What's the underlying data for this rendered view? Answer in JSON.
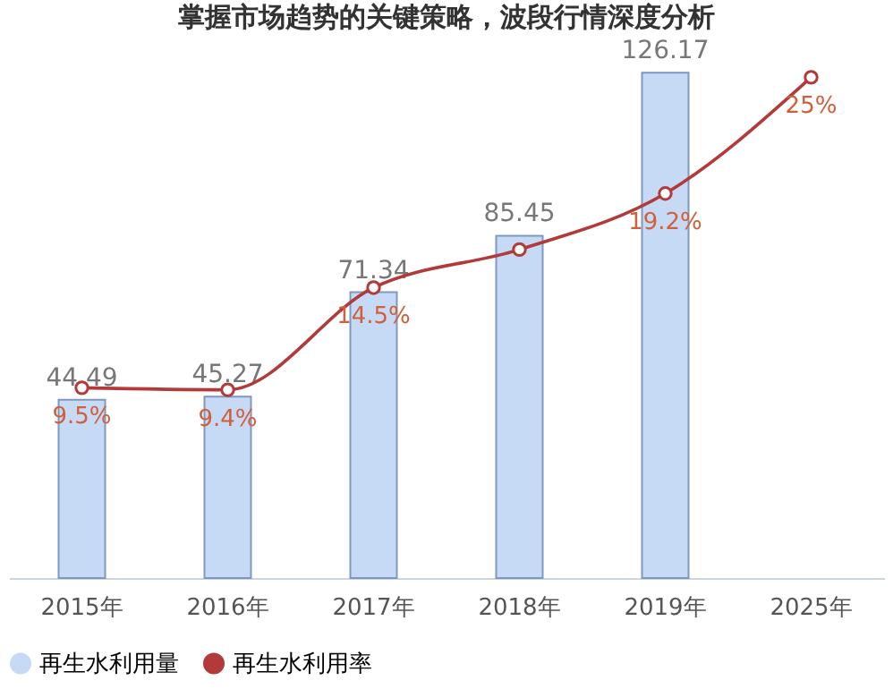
{
  "chart_data": {
    "type": "bar",
    "title": "掌握市场趋势的关键策略，波段行情深度分析",
    "categories": [
      "2015年",
      "2016年",
      "2017年",
      "2018年",
      "2019年",
      "2025年"
    ],
    "series": [
      {
        "name": "再生水利用量",
        "color": "#c6daf6",
        "values": [
          44.49,
          45.27,
          71.34,
          85.45,
          126.17,
          null
        ],
        "value_labels": [
          "44.49",
          "45.27",
          "71.34",
          "85.45",
          "126.17",
          null
        ]
      },
      {
        "name": "再生水利用率",
        "type": "line",
        "axis": "y2",
        "color": "#b23a3a",
        "marker": "circle",
        "values": [
          9.5,
          9.4,
          14.5,
          16.4,
          19.2,
          25
        ],
        "value_labels": [
          "9.5%",
          "9.4%",
          "14.5%",
          null,
          "19.2%",
          "25%"
        ]
      }
    ],
    "tick_labels": "x",
    "legend": "bottom"
  }
}
